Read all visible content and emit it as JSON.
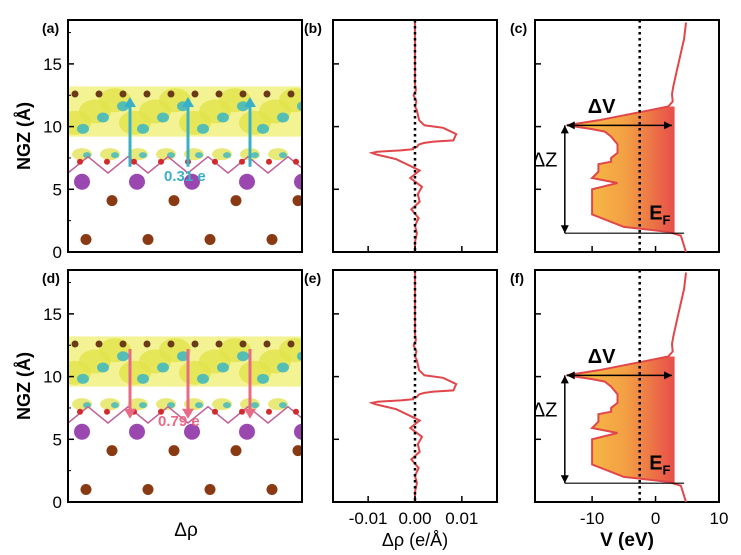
{
  "chart_data": [
    {
      "panel": "(a)",
      "type": "structure-image",
      "ylabel": "NGZ (Å)",
      "yticks": [
        "15",
        "10",
        "5",
        "0"
      ],
      "ylim": [
        0,
        18.5
      ],
      "charge_label": "0.31 e",
      "charge_color": "#3ab0c8",
      "arrow_direction": "up"
    },
    {
      "panel": "(b)",
      "type": "line",
      "ylim": [
        0,
        18.5
      ],
      "xlim": [
        -0.0175,
        0.0175
      ],
      "series": [
        {
          "color": "#e0464a",
          "x": [
            0,
            0,
            0.0002,
            -0.0003,
            0.0003,
            0,
            0.0004,
            0.0007,
            0.0009,
            0.002,
            0.006,
            0.0088,
            0.0082,
            0.004,
            0.002,
            0.001,
            0.0006,
            0.0005,
            -0.0004,
            -0.0004,
            -0.003,
            -0.008,
            -0.0092,
            -0.0085,
            -0.004,
            0.001,
            -0.001,
            0.0015,
            0.0006,
            0.001,
            -0.0008,
            0.0008,
            0,
            0.0004,
            0,
            0
          ],
          "y": [
            18.3,
            13.4,
            12.9,
            12.5,
            12.0,
            11.6,
            11.3,
            10.8,
            10.5,
            10.1,
            9.9,
            9.4,
            8.9,
            8.8,
            8.7,
            8.6,
            8.5,
            8.4,
            8.3,
            8.2,
            8.1,
            8.0,
            7.9,
            7.8,
            7.4,
            6.5,
            5.9,
            5.2,
            4.6,
            4.0,
            3.4,
            2.7,
            2.1,
            1.5,
            0.8,
            0
          ]
        }
      ]
    },
    {
      "panel": "(c)",
      "type": "area",
      "ylim": [
        0,
        18.5
      ],
      "xlim": [
        -19,
        10
      ],
      "ef_x": -2.5,
      "series": [
        {
          "color": "#e0464a",
          "x": [
            4.8,
            4.5,
            3.5,
            2.8,
            2.6,
            2.7,
            2.0,
            -1,
            -5,
            -9,
            -14,
            -10,
            -8,
            -7,
            -6,
            -6,
            -7,
            -7,
            -9,
            -9,
            -10,
            -6,
            -10,
            -10,
            -10,
            -10,
            -5,
            2,
            4,
            4.8
          ],
          "y": [
            18.3,
            17.0,
            14.8,
            13.2,
            12.6,
            12.0,
            11.6,
            11.3,
            10.9,
            10.5,
            10.1,
            9.8,
            9.6,
            9.2,
            8.6,
            7.9,
            7.5,
            7.2,
            7.0,
            6.4,
            5.9,
            5.5,
            5.0,
            4.6,
            4.0,
            3.0,
            2.0,
            1.6,
            1.3,
            0
          ]
        }
      ],
      "annotations": [
        {
          "text": "ΔV"
        },
        {
          "text": "ΔZ"
        },
        {
          "text": "E",
          "sub": "F"
        }
      ]
    },
    {
      "panel": "(d)",
      "type": "structure-image",
      "ylabel": "NGZ (Å)",
      "yticks": [
        "15",
        "10",
        "5",
        "0"
      ],
      "ylim": [
        0,
        18.5
      ],
      "charge_label": "0.79 e",
      "charge_color": "#e86a86",
      "arrow_direction": "down",
      "xlabel": "Δρ"
    },
    {
      "panel": "(e)",
      "type": "line",
      "ylim": [
        0,
        18.5
      ],
      "xlim": [
        -0.0175,
        0.0175
      ],
      "xticks": [
        "-0.01",
        "0.00",
        "0.01"
      ],
      "xtick_values": [
        -0.01,
        0.0,
        0.01
      ],
      "xlabel": "Δρ (e/Å)",
      "series": [
        {
          "color": "#e0464a",
          "x": [
            0,
            0,
            0.0002,
            -0.0003,
            0.0003,
            0,
            0.0004,
            0.0007,
            0.0009,
            0.002,
            0.006,
            0.0088,
            0.0082,
            0.004,
            0.002,
            0.001,
            0.0006,
            0.0005,
            -0.0004,
            -0.0004,
            -0.003,
            -0.008,
            -0.0092,
            -0.0085,
            -0.004,
            0.001,
            -0.001,
            0.0015,
            0.0006,
            0.001,
            -0.0008,
            0.0008,
            0,
            0.0004,
            0,
            0
          ],
          "y": [
            18.3,
            13.4,
            12.9,
            12.5,
            12.0,
            11.6,
            11.3,
            10.8,
            10.5,
            10.1,
            9.9,
            9.4,
            8.9,
            8.8,
            8.7,
            8.6,
            8.5,
            8.4,
            8.3,
            8.2,
            8.1,
            8.0,
            7.9,
            7.8,
            7.4,
            6.5,
            5.9,
            5.2,
            4.6,
            4.0,
            3.4,
            2.7,
            2.1,
            1.5,
            0.8,
            0
          ]
        }
      ]
    },
    {
      "panel": "(f)",
      "type": "area",
      "ylim": [
        0,
        18.5
      ],
      "xlim": [
        -19,
        10
      ],
      "ef_x": -2.5,
      "xticks": [
        "-10",
        "0",
        "10"
      ],
      "xtick_values": [
        -10,
        0,
        10
      ],
      "xlabel": "V (eV)",
      "series": [
        {
          "color": "#e0464a",
          "x": [
            4.8,
            4.5,
            3.5,
            2.8,
            2.6,
            2.7,
            2.0,
            -1,
            -5,
            -9,
            -14,
            -10,
            -8,
            -7,
            -6,
            -6,
            -7,
            -7,
            -9,
            -9,
            -10,
            -6,
            -10,
            -10,
            -10,
            -10,
            -5,
            2,
            4,
            4.8
          ],
          "y": [
            18.3,
            17.0,
            14.8,
            13.2,
            12.6,
            12.0,
            11.6,
            11.3,
            10.9,
            10.5,
            10.1,
            9.8,
            9.6,
            9.2,
            8.6,
            7.9,
            7.5,
            7.2,
            7.0,
            6.4,
            5.9,
            5.5,
            5.0,
            4.6,
            4.0,
            3.0,
            2.0,
            1.6,
            1.3,
            0
          ]
        }
      ],
      "annotations": [
        {
          "text": "ΔV"
        },
        {
          "text": "ΔZ"
        },
        {
          "text": "E",
          "sub": "F"
        }
      ]
    }
  ]
}
